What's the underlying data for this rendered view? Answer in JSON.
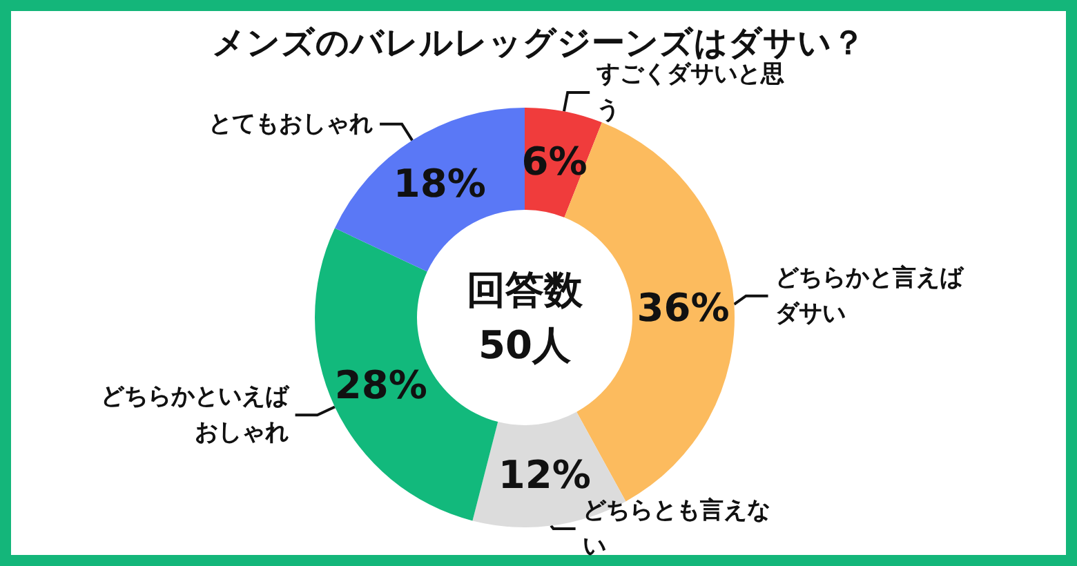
{
  "chart_data": {
    "type": "donut",
    "title": "メンズのバレルレッグジーンズはダサい？",
    "categories": [
      "すごくダサいと思う",
      "どちらかと言えばダサい",
      "どちらとも言えない",
      "どちらかといえばおしゃれ",
      "とてもおしゃれ"
    ],
    "values": [
      6,
      36,
      12,
      28,
      18
    ],
    "value_labels": [
      "6%",
      "36%",
      "12%",
      "28%",
      "18%"
    ],
    "colors": [
      "#f03c3c",
      "#fcbb5e",
      "#dcdcdc",
      "#12b97c",
      "#5a78f6"
    ],
    "annotations": [
      "回答数",
      "50人"
    ],
    "legend": false
  }
}
